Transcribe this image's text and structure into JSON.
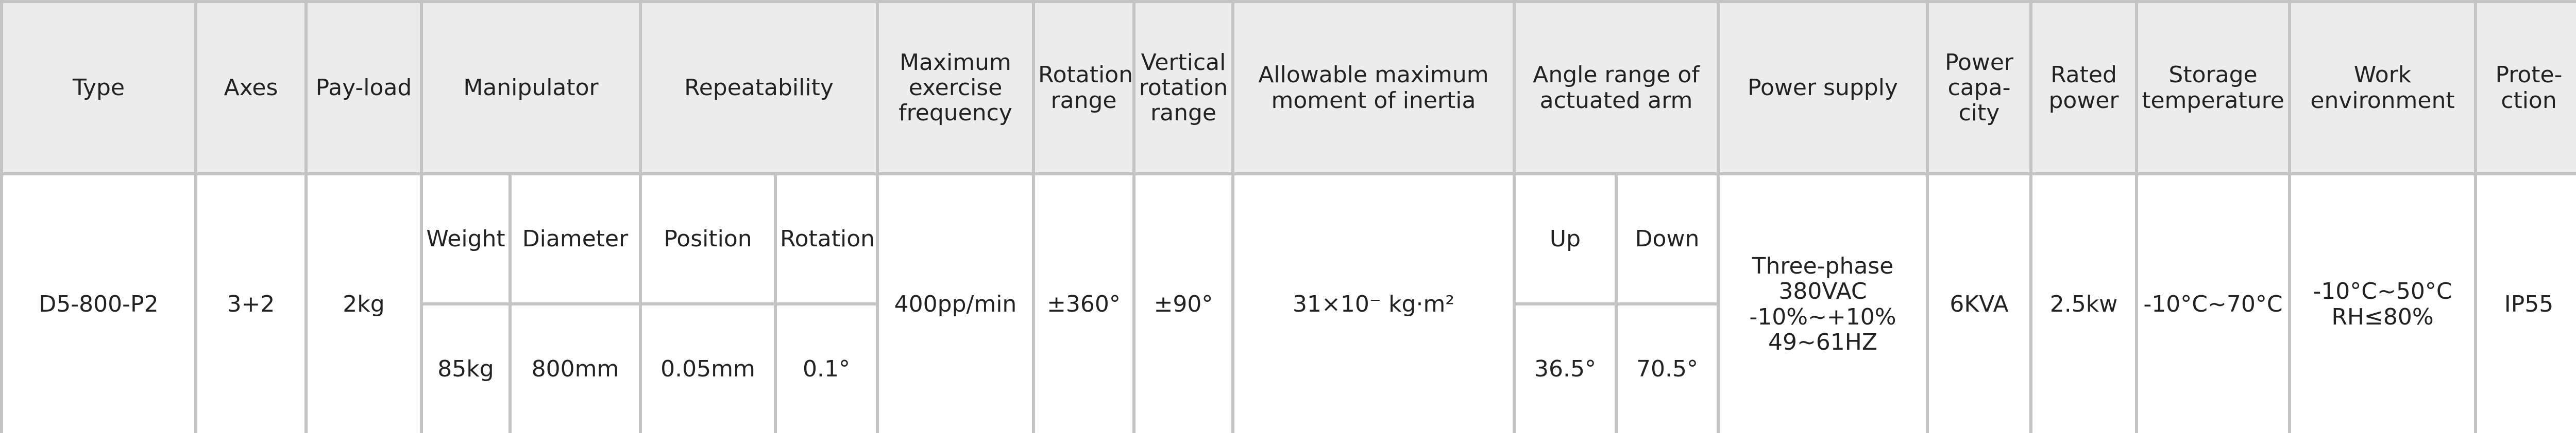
{
  "table": {
    "header": [
      "Type",
      "Axes",
      "Pay-load",
      "Manipulator",
      "Repeatability",
      "Maximum exercise frequency",
      "Rotation range",
      "Vertical rotation range",
      "Allowable maximum moment of inertia",
      "Angle range of actuated arm",
      "Power supply",
      "Power capa-city",
      "Rated power",
      "Storage temperature",
      "Work environment",
      "Prote-ction"
    ],
    "subheader": [
      "Weight",
      "Diameter",
      "Position",
      "Rotation",
      "Up",
      "Down"
    ],
    "values": [
      "D5-800-P2",
      "3+2",
      "2kg",
      "400pp/min",
      "±360°",
      "±90°",
      "31×10⁻  kg·m²",
      "Three-phase\n380VAC\n-10%~+10%\n49~61HZ",
      "6KVA",
      "2.5kw",
      "-10°C~70°C",
      "-10°C~50°C\nRH≤80%",
      "IP55"
    ],
    "sub_values": [
      "85kg",
      "800mm",
      "0.05mm",
      "0.1°",
      "36.5°",
      "70.5°"
    ]
  }
}
